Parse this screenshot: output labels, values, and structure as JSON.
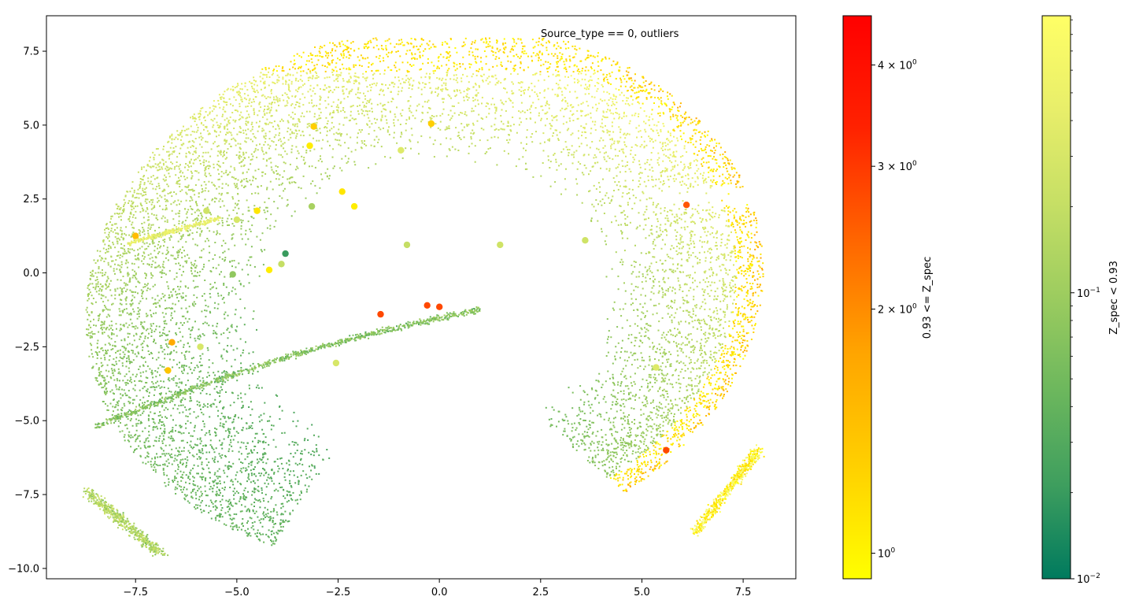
{
  "chart_data": {
    "type": "scatter",
    "annotation": "Source_type == 0, outliers",
    "xlim": [
      -9.7,
      8.8
    ],
    "ylim": [
      -10.35,
      8.7
    ],
    "x_ticks": [
      -7.5,
      -5.0,
      -2.5,
      0.0,
      2.5,
      5.0,
      7.5
    ],
    "x_tick_labels": [
      "−7.5",
      "−5.0",
      "−2.5",
      "0.0",
      "2.5",
      "5.0",
      "7.5"
    ],
    "y_ticks": [
      7.5,
      5.0,
      2.5,
      0.0,
      -2.5,
      -5.0,
      -7.5,
      -10.0
    ],
    "y_tick_labels": [
      "7.5",
      "5.0",
      "2.5",
      "0.0",
      "−2.5",
      "−5.0",
      "−7.5",
      "−10.0"
    ],
    "grid": false,
    "colorbars": [
      {
        "label": "0.93 <= Z_spec",
        "scale": "log",
        "range": [
          0.93,
          4.6
        ],
        "colors": [
          "#ffff00",
          "#ffd000",
          "#ffa500",
          "#ff6600",
          "#ff2200",
          "#ff0000"
        ],
        "ticks": [
          {
            "value": 1,
            "label_base": "10",
            "label_exp": "0"
          },
          {
            "value": 2,
            "label_base": "2 × 10",
            "label_exp": "0"
          },
          {
            "value": 3,
            "label_base": "3 × 10",
            "label_exp": "0"
          },
          {
            "value": 4,
            "label_base": "4 × 10",
            "label_exp": "0"
          }
        ],
        "minor_ticks": []
      },
      {
        "label": "Z_spec < 0.93",
        "scale": "log",
        "range": [
          0.01,
          0.93
        ],
        "colors": [
          "#007a5e",
          "#3e9e5e",
          "#6cb75d",
          "#9ccc5f",
          "#c6df65",
          "#e8ee6a",
          "#ffff66"
        ],
        "ticks": [
          {
            "value": 0.01,
            "label_base": "10",
            "label_exp": "−2"
          },
          {
            "value": 0.1,
            "label_base": "10",
            "label_exp": "−1"
          }
        ],
        "minor_ticks": [
          0.02,
          0.03,
          0.04,
          0.05,
          0.06,
          0.07,
          0.08,
          0.09,
          0.2,
          0.3,
          0.4,
          0.5,
          0.6,
          0.7,
          0.8,
          0.9
        ]
      }
    ],
    "outliers": [
      {
        "x": -7.5,
        "y": 1.25,
        "z": 1.5
      },
      {
        "x": -3.1,
        "y": 4.95,
        "z": 1.3
      },
      {
        "x": -0.2,
        "y": 5.05,
        "z": 1.3
      },
      {
        "x": -3.2,
        "y": 4.3,
        "z": 1.05
      },
      {
        "x": -2.4,
        "y": 2.75,
        "z": 1.1
      },
      {
        "x": -4.5,
        "y": 2.1,
        "z": 1.1
      },
      {
        "x": -2.1,
        "y": 2.25,
        "z": 1.05
      },
      {
        "x": -4.2,
        "y": 0.1,
        "z": 1.05
      },
      {
        "x": -6.6,
        "y": -2.35,
        "z": 1.7
      },
      {
        "x": -6.7,
        "y": -3.3,
        "z": 1.4
      },
      {
        "x": -1.45,
        "y": -1.4,
        "z": 2.8
      },
      {
        "x": -0.3,
        "y": -1.1,
        "z": 2.8
      },
      {
        "x": 0.0,
        "y": -1.15,
        "z": 2.8
      },
      {
        "x": 5.6,
        "y": -6.0,
        "z": 2.8
      },
      {
        "x": 6.1,
        "y": 2.3,
        "z": 2.6
      },
      {
        "x": -3.8,
        "y": 0.65,
        "z": 0.02
      },
      {
        "x": -5.1,
        "y": -0.05,
        "z": 0.08
      },
      {
        "x": -3.15,
        "y": 2.25,
        "z": 0.12
      },
      {
        "x": -5.75,
        "y": 2.1,
        "z": 0.25
      },
      {
        "x": -5.0,
        "y": 1.8,
        "z": 0.3
      },
      {
        "x": -3.9,
        "y": 0.3,
        "z": 0.2
      },
      {
        "x": -0.95,
        "y": 4.15,
        "z": 0.35
      },
      {
        "x": -0.8,
        "y": 0.95,
        "z": 0.2
      },
      {
        "x": 1.5,
        "y": 0.95,
        "z": 0.25
      },
      {
        "x": 3.6,
        "y": 1.1,
        "z": 0.25
      },
      {
        "x": -2.55,
        "y": -3.05,
        "z": 0.3
      },
      {
        "x": 5.35,
        "y": -3.2,
        "z": 0.35
      },
      {
        "x": -5.9,
        "y": -2.5,
        "z": 0.3
      }
    ]
  }
}
